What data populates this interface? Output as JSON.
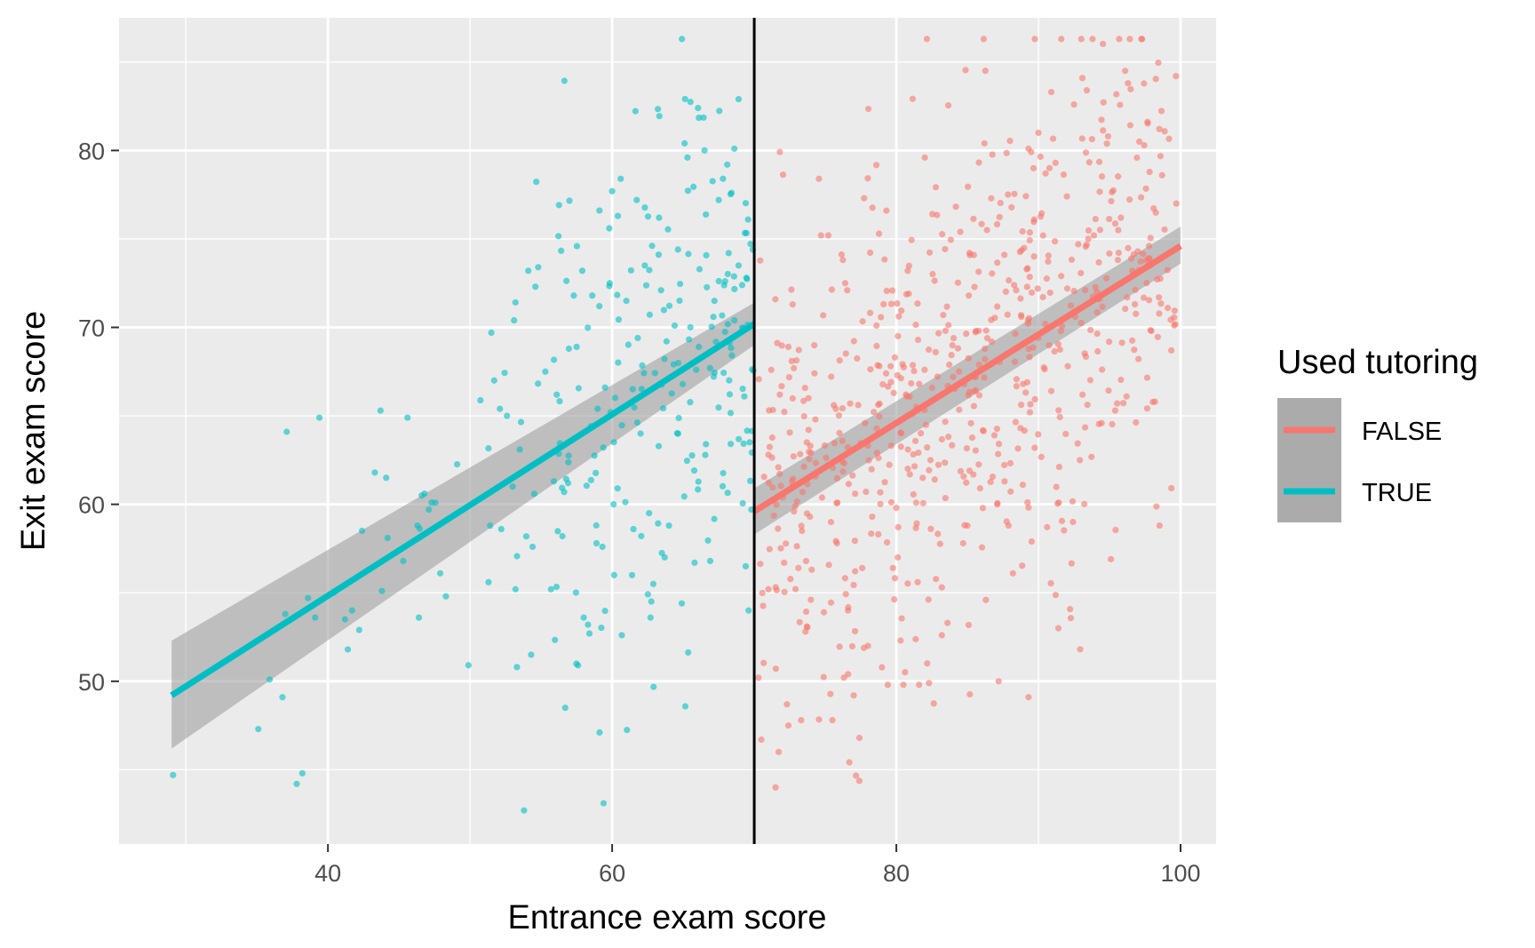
{
  "chart_data": {
    "type": "scatter",
    "title": "",
    "xlabel": "Entrance exam score",
    "ylabel": "Exit exam score",
    "xlim": [
      25.3,
      102.5
    ],
    "ylim": [
      40.8,
      87.5
    ],
    "x_ticks": [
      40,
      60,
      80,
      100
    ],
    "x_tick_labels": [
      "40",
      "60",
      "80",
      "100"
    ],
    "x_minor_ticks": [
      30,
      50,
      70,
      90
    ],
    "y_ticks": [
      50,
      60,
      70,
      80
    ],
    "y_tick_labels": [
      "50",
      "60",
      "70",
      "80"
    ],
    "y_minor_ticks": [
      45,
      55,
      65,
      75,
      85
    ],
    "grid": true,
    "cutoff": 70,
    "legend": {
      "title": "Used tutoring",
      "position": "right",
      "entries": [
        {
          "label": "FALSE",
          "color": "#F8766D"
        },
        {
          "label": "TRUE",
          "color": "#00BFC4"
        }
      ]
    },
    "series": [
      {
        "name": "FALSE",
        "color": "#F8766D",
        "x_range": [
          70,
          100
        ],
        "n_points": 700,
        "fit": {
          "x": [
            70,
            100
          ],
          "y": [
            59.6,
            74.6
          ],
          "ci_low": [
            58.3,
            73.6
          ],
          "ci_high": [
            60.9,
            75.7
          ]
        },
        "points": [
          [
            70.3,
            50.2
          ],
          [
            70.5,
            46.7
          ],
          [
            71.5,
            44.0
          ],
          [
            72.4,
            47.5
          ],
          [
            72.3,
            48.7
          ],
          [
            73.3,
            47.8
          ],
          [
            75.5,
            47.8
          ],
          [
            76.6,
            50.4
          ],
          [
            77.0,
            49.2
          ],
          [
            77.4,
            46.8
          ],
          [
            79.4,
            49.8
          ],
          [
            80.5,
            49.8
          ],
          [
            80.3,
            52.3
          ],
          [
            81.6,
            49.8
          ],
          [
            82.3,
            49.9
          ],
          [
            83.2,
            52.6
          ],
          [
            87.2,
            50.0
          ],
          [
            89.3,
            49.1
          ],
          [
            91.4,
            53.0
          ],
          [
            71.0,
            55.2
          ],
          [
            72.1,
            56.7
          ],
          [
            73.7,
            53.1
          ],
          [
            74.9,
            53.9
          ],
          [
            76.6,
            54.0
          ],
          [
            78.0,
            52.0
          ],
          [
            71.0,
            62.8
          ],
          [
            71.8,
            66.2
          ],
          [
            72.4,
            68.9
          ],
          [
            72.7,
            71.3
          ],
          [
            73.7,
            63.5
          ],
          [
            74.7,
            75.2
          ],
          [
            75.4,
            59.0
          ],
          [
            76.4,
            72.5
          ],
          [
            77.1,
            60.6
          ],
          [
            77.8,
            64.6
          ],
          [
            78.6,
            70.1
          ],
          [
            79.3,
            76.6
          ],
          [
            79.9,
            68.3
          ],
          [
            80.1,
            57.0
          ],
          [
            80.8,
            73.2
          ],
          [
            81.1,
            65.1
          ],
          [
            82.0,
            79.6
          ],
          [
            82.7,
            61.4
          ],
          [
            83.3,
            70.7
          ],
          [
            84.0,
            67.2
          ],
          [
            84.5,
            75.4
          ],
          [
            85.0,
            58.8
          ],
          [
            85.6,
            69.8
          ],
          [
            86.2,
            80.4
          ],
          [
            86.9,
            63.9
          ],
          [
            87.6,
            74.1
          ],
          [
            88.2,
            56.1
          ],
          [
            88.8,
            70.6
          ],
          [
            89.4,
            65.2
          ],
          [
            90.0,
            81.0
          ],
          [
            90.5,
            78.7
          ],
          [
            90.9,
            83.3
          ],
          [
            91.6,
            72.9
          ],
          [
            92.0,
            77.4
          ],
          [
            92.5,
            82.6
          ],
          [
            93.1,
            66.2
          ],
          [
            93.4,
            83.4
          ],
          [
            93.9,
            75.2
          ],
          [
            94.3,
            71.6
          ],
          [
            94.9,
            80.8
          ],
          [
            95.4,
            65.3
          ],
          [
            95.8,
            76.2
          ],
          [
            96.1,
            84.5
          ],
          [
            96.3,
            83.8
          ],
          [
            96.6,
            73.2
          ],
          [
            97.1,
            80.5
          ],
          [
            97.8,
            73.9
          ],
          [
            98.2,
            65.8
          ],
          [
            98.7,
            78.6
          ],
          [
            99.1,
            71.1
          ],
          [
            99.7,
            77.0
          ],
          [
            91.2,
            79.3
          ],
          [
            92.8,
            74.7
          ],
          [
            95.1,
            56.9
          ],
          [
            89.3,
            80.1
          ],
          [
            88.9,
            61.1
          ],
          [
            87.1,
            60.0
          ],
          [
            86.3,
            54.6
          ],
          [
            84.7,
            57.8
          ],
          [
            83.6,
            53.3
          ],
          [
            82.4,
            62.5
          ],
          [
            81.5,
            55.6
          ],
          [
            80.0,
            59.8
          ],
          [
            78.3,
            59.3
          ],
          [
            77.6,
            56.4
          ],
          [
            76.2,
            62.4
          ],
          [
            75.6,
            65.6
          ],
          [
            74.3,
            64.8
          ],
          [
            73.4,
            60.7
          ],
          [
            72.8,
            59.6
          ],
          [
            71.2,
            67.6
          ]
        ]
      },
      {
        "name": "TRUE",
        "color": "#00BFC4",
        "x_range": [
          29,
          70
        ],
        "n_points": 300,
        "fit": {
          "x": [
            29,
            70
          ],
          "y": [
            49.2,
            70.2
          ],
          "ci_low": [
            46.2,
            69.0
          ],
          "ci_high": [
            52.3,
            71.4
          ]
        },
        "points": [
          [
            29.1,
            44.7
          ],
          [
            35.1,
            47.3
          ],
          [
            35.9,
            50.1
          ],
          [
            36.8,
            49.1
          ],
          [
            37.0,
            53.8
          ],
          [
            37.1,
            64.1
          ],
          [
            37.8,
            44.2
          ],
          [
            38.2,
            44.8
          ],
          [
            38.6,
            54.7
          ],
          [
            39.1,
            53.6
          ],
          [
            39.4,
            64.9
          ],
          [
            40.4,
            55.0
          ],
          [
            41.2,
            53.5
          ],
          [
            41.4,
            51.8
          ],
          [
            41.7,
            54.0
          ],
          [
            42.2,
            52.9
          ],
          [
            42.4,
            58.5
          ],
          [
            43.3,
            61.8
          ],
          [
            43.7,
            65.3
          ],
          [
            43.8,
            55.1
          ],
          [
            44.1,
            61.5
          ],
          [
            44.2,
            58.1
          ],
          [
            45.3,
            56.8
          ],
          [
            45.6,
            64.9
          ],
          [
            46.3,
            58.8
          ],
          [
            46.4,
            53.6
          ],
          [
            46.6,
            60.5
          ],
          [
            47.1,
            59.7
          ],
          [
            47.3,
            60.1
          ],
          [
            47.9,
            56.1
          ],
          [
            48.3,
            54.8
          ],
          [
            51.3,
            55.6
          ],
          [
            51.5,
            69.7
          ],
          [
            51.7,
            67.0
          ],
          [
            52.1,
            65.4
          ],
          [
            52.2,
            58.6
          ],
          [
            52.6,
            65.0
          ],
          [
            53.0,
            61.0
          ],
          [
            53.1,
            70.4
          ],
          [
            53.2,
            55.2
          ],
          [
            53.3,
            50.8
          ],
          [
            53.5,
            63.1
          ],
          [
            53.8,
            42.7
          ],
          [
            54.1,
            73.2
          ],
          [
            54.3,
            51.5
          ],
          [
            54.4,
            57.6
          ],
          [
            54.6,
            72.3
          ],
          [
            54.8,
            73.4
          ],
          [
            55.3,
            67.5
          ],
          [
            55.7,
            55.2
          ],
          [
            55.9,
            61.3
          ],
          [
            56.1,
            66.2
          ],
          [
            56.5,
            58.2
          ],
          [
            56.7,
            48.5
          ],
          [
            56.9,
            61.2
          ],
          [
            57.3,
            71.8
          ],
          [
            57.5,
            68.9
          ],
          [
            57.6,
            50.9
          ],
          [
            57.9,
            73.2
          ],
          [
            58.0,
            53.6
          ],
          [
            58.3,
            53.2
          ],
          [
            58.4,
            52.7
          ],
          [
            58.6,
            71.8
          ],
          [
            58.9,
            57.8
          ],
          [
            59.1,
            71.2
          ],
          [
            59.5,
            66.6
          ],
          [
            59.8,
            75.6
          ],
          [
            60.0,
            77.7
          ],
          [
            60.1,
            60.0
          ],
          [
            60.4,
            76.3
          ],
          [
            60.6,
            78.4
          ],
          [
            61.0,
            71.5
          ],
          [
            61.4,
            56.0
          ],
          [
            61.5,
            58.6
          ],
          [
            61.8,
            69.4
          ],
          [
            62.0,
            64.0
          ],
          [
            62.3,
            73.5
          ],
          [
            62.6,
            59.5
          ],
          [
            62.7,
            53.6
          ],
          [
            62.9,
            55.5
          ],
          [
            63.3,
            76.2
          ],
          [
            63.7,
            57.0
          ],
          [
            64.0,
            58.8
          ],
          [
            64.4,
            70.1
          ],
          [
            64.9,
            54.4
          ],
          [
            65.1,
            80.4
          ],
          [
            65.3,
            79.6
          ],
          [
            65.8,
            56.7
          ],
          [
            66.1,
            68.9
          ],
          [
            66.5,
            80.0
          ],
          [
            66.6,
            63.4
          ],
          [
            66.9,
            56.8
          ],
          [
            67.2,
            71.5
          ],
          [
            67.5,
            77.2
          ],
          [
            67.8,
            78.4
          ],
          [
            68.1,
            79.2
          ],
          [
            68.2,
            74.2
          ],
          [
            68.4,
            77.6
          ],
          [
            68.6,
            80.1
          ],
          [
            68.9,
            73.5
          ],
          [
            69.3,
            66.1
          ],
          [
            69.4,
            56.5
          ],
          [
            69.6,
            54.0
          ],
          [
            69.8,
            59.7
          ],
          [
            69.9,
            74.4
          ]
        ]
      }
    ]
  }
}
